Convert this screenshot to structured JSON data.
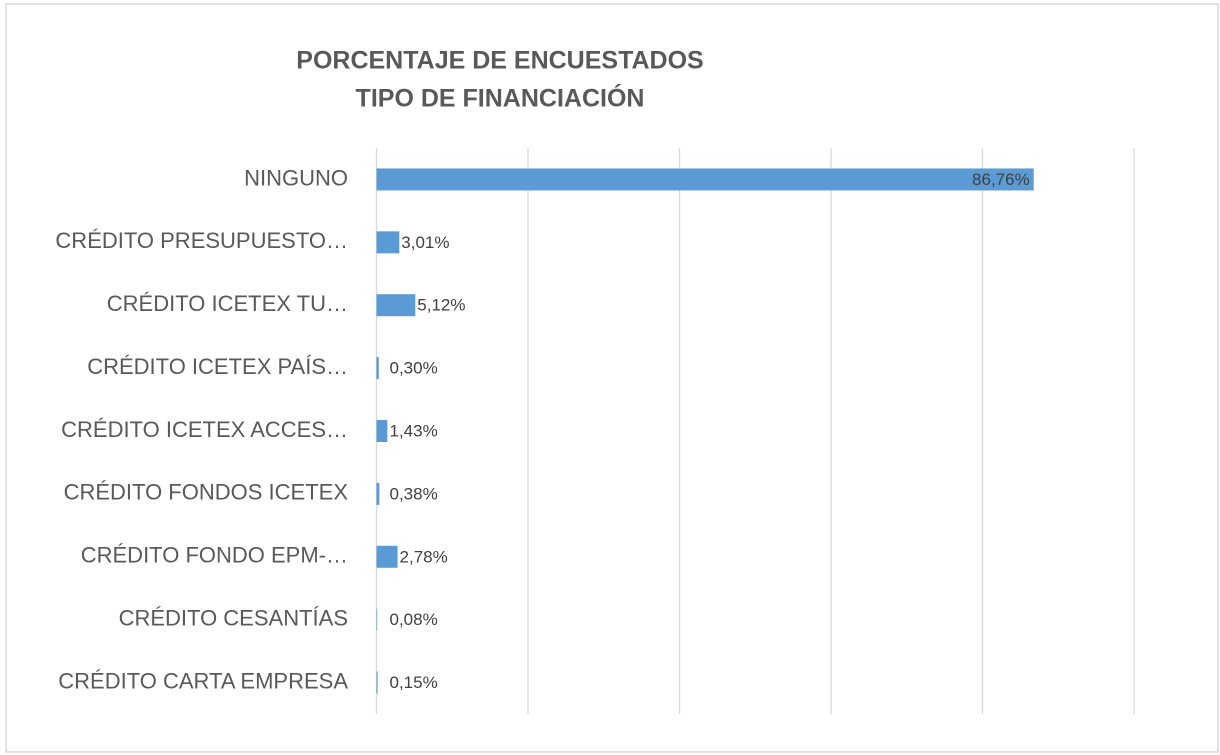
{
  "chart_data": {
    "type": "barh",
    "title": "PORCENTAJE DE ENCUESTADOS",
    "subtitle": "TIPO DE FINANCIACIÓN",
    "categories": [
      "NINGUNO",
      "CRÉDITO PRESUPUESTO…",
      "CRÉDITO ICETEX TU…",
      "CRÉDITO ICETEX PAÍS…",
      "CRÉDITO ICETEX ACCES…",
      "CRÉDITO FONDOS ICETEX",
      "CRÉDITO FONDO EPM-…",
      "CRÉDITO CESANTÍAS",
      "CRÉDITO CARTA EMPRESA"
    ],
    "values": [
      86.76,
      3.01,
      5.12,
      0.3,
      1.43,
      0.38,
      2.78,
      0.08,
      0.15
    ],
    "value_labels": [
      "86,76%",
      "3,01%",
      "5,12%",
      "0,30%",
      "1,43%",
      "0,38%",
      "2,78%",
      "0,08%",
      "0,15%"
    ],
    "color": "#5b9bd5",
    "xlim": [
      0,
      100
    ],
    "xticks": [
      0,
      20,
      40,
      60,
      80,
      100
    ],
    "grid": true
  }
}
